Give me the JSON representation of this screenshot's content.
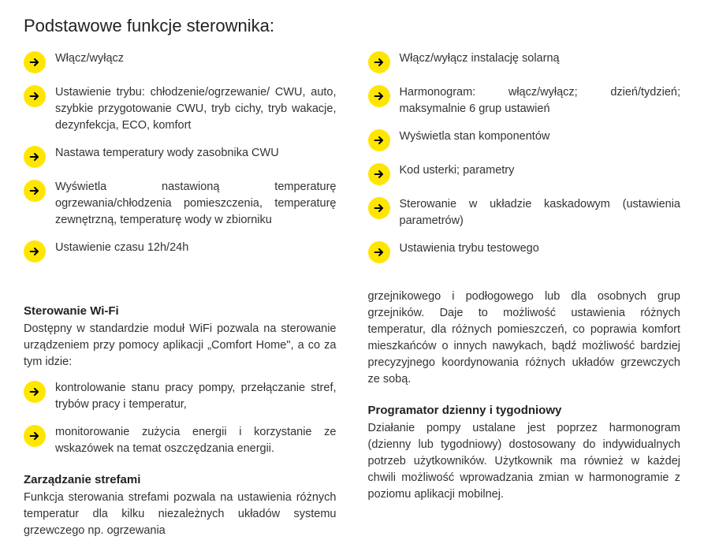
{
  "title": "Podstawowe funkcje sterownika:",
  "accent_color": "#ffe600",
  "text_color": "#333333",
  "bullets_left": [
    "Włącz/wyłącz",
    "Ustawienie trybu: chłodzenie/ogrzewanie/ CWU, auto, szybkie przygotowanie CWU, tryb cichy, tryb wakacje, dezynfekcja, ECO, komfort",
    "Nastawa temperatury wody zasobnika CWU",
    "Wyświetla nastawioną temperaturę ogrzewania/chłodzenia pomieszczenia, temperaturę zewnętrzną, temperaturę wody w zbiorniku",
    "Ustawienie czasu 12h/24h"
  ],
  "bullets_right": [
    "Włącz/wyłącz instalację solarną",
    "Harmonogram: włącz/wyłącz; dzień/tydzień; maksymalnie 6 grup ustawień",
    "Wyświetla stan komponentów",
    "Kod usterki; parametry",
    "Sterowanie w układzie kaskadowym (ustawienia parametrów)",
    "Ustawienia trybu testowego"
  ],
  "wifi_heading": "Sterowanie Wi-Fi",
  "wifi_intro": "Dostępny w standardzie moduł WiFi pozwala na sterowanie urządzeniem przy pomocy aplikacji „Comfort Home\", a co za tym idzie:",
  "wifi_bullets": [
    "kontrolowanie stanu pracy pompy, przełączanie stref, trybów pracy i temperatur,",
    "monitorowanie zużycia energii i korzystanie ze wskazówek na temat oszczędzania energii."
  ],
  "zones_heading": "Zarządzanie strefami",
  "zones_para_left": "Funkcja sterowania strefami pozwala na ustawienia różnych temperatur dla kilku niezależnych układów systemu grzewczego np. ogrzewania",
  "zones_para_right": "grzejnikowego i podłogowego lub dla osobnych grup grzejników. Daje to możliwość ustawienia różnych temperatur, dla różnych pomieszczeń, co poprawia komfort mieszkańców o innych nawykach, bądź możliwość bardziej precyzyjnego koordynowania różnych układów grzewczych ze sobą.",
  "programmer_heading": "Programator dzienny i tygodniowy",
  "programmer_para": "Działanie pompy ustalane jest poprzez harmonogram (dzienny lub tygodniowy) dostosowany do indywidualnych potrzeb użytkowników. Użytkownik ma również w każdej chwili możliwość wprowadzania zmian w harmonogramie z poziomu aplikacji mobilnej."
}
